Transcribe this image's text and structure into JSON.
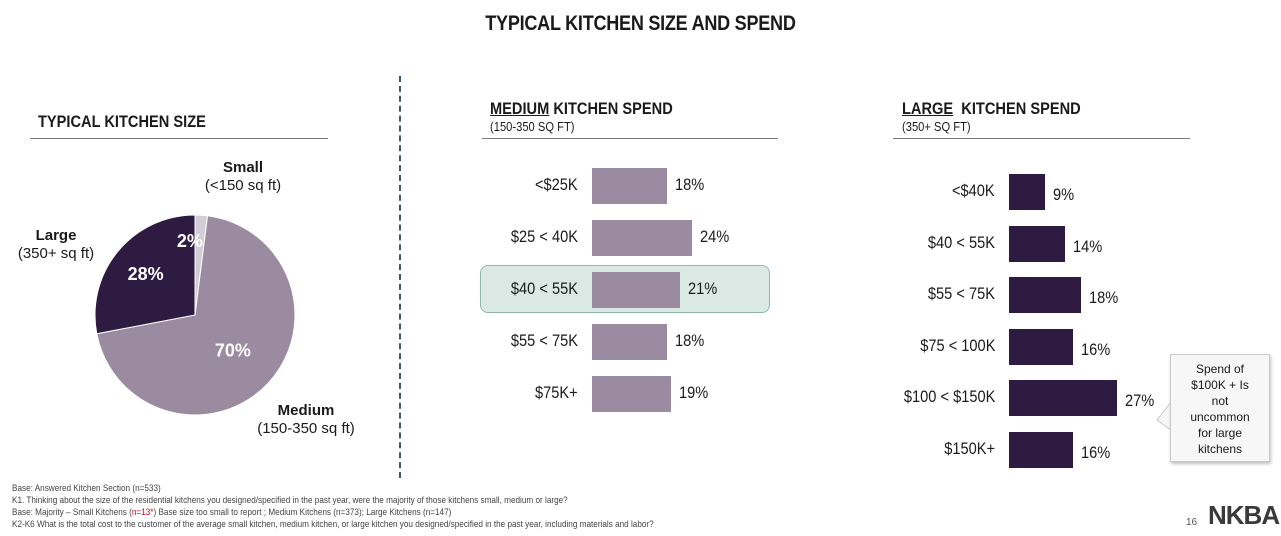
{
  "title": "TYPICAL KITCHEN SIZE AND SPEND",
  "size_section": {
    "title": "TYPICAL KITCHEN SIZE",
    "labels": {
      "small_name": "Small",
      "small_range": "(<150 sq ft)",
      "large_name": "Large",
      "large_range": "(350+ sq ft)",
      "medium_name": "Medium",
      "medium_range": "(150-350 sq ft)"
    }
  },
  "medium_section": {
    "title_underlined": "MEDIUM",
    "title_rest": " KITCHEN SPEND",
    "subtitle": "(150-350 SQ FT)"
  },
  "large_section": {
    "title_underlined": "LARGE",
    "title_rest": "  KITCHEN SPEND",
    "subtitle": "(350+ SQ FT)"
  },
  "callout": {
    "lines": [
      "Spend of",
      "$100K + Is",
      "not",
      "uncommon",
      "for large",
      "kitchens"
    ]
  },
  "footnotes": {
    "line1": "Base:  Answered Kitchen Section (n=533)",
    "line2": "K1.     Thinking about the size of the residential kitchens you designed/specified in the past year, were the majority of those kitchens small, medium or large?",
    "line3a": "Base:  Majority – Small Kitchens (",
    "line3b": "n=13*",
    "line3c": ") Base size too small to report ; Medium Kitchens (n=373); Large Kitchens (n=147)",
    "line4": "K2-K6 What is the total cost to the customer of the average small kitchen, medium kitchen, or large kitchen you designed/specified in the past year, including materials and labor?"
  },
  "page_number": "16",
  "logo": "NKBA",
  "colors": {
    "medium_bar": "#9a8ba0",
    "large_bar": "#2e1b41",
    "pie_medium": "#9a8ba0",
    "pie_large": "#2e1b41",
    "pie_small": "#d2ccd6",
    "highlight_fill": "#dbe9e4",
    "footnote_red": "#d0021b"
  },
  "chart_data": [
    {
      "type": "pie",
      "title": "TYPICAL KITCHEN SIZE",
      "categories": [
        "Small",
        "Medium",
        "Large"
      ],
      "values": [
        2,
        70,
        28
      ],
      "labels": [
        "2%",
        "70%",
        "28%"
      ]
    },
    {
      "type": "bar",
      "orientation": "horizontal",
      "title": "MEDIUM KITCHEN SPEND",
      "subtitle": "(150-350 SQ FT)",
      "categories": [
        "<$25K",
        "$25 < 40K",
        "$40 < 55K",
        "$55 < 75K",
        "$75K+"
      ],
      "values": [
        18,
        24,
        21,
        18,
        19
      ],
      "labels": [
        "18%",
        "24%",
        "21%",
        "18%",
        "19%"
      ],
      "highlighted": "$40 < 55K"
    },
    {
      "type": "bar",
      "orientation": "horizontal",
      "title": "LARGE  KITCHEN SPEND",
      "subtitle": "(350+ SQ FT)",
      "categories": [
        "<$40K",
        "$40 < 55K",
        "$55 < 75K",
        "$75 < 100K",
        "$100 < $150K",
        "$150K+"
      ],
      "values": [
        9,
        14,
        18,
        16,
        27,
        16
      ],
      "labels": [
        "9%",
        "14%",
        "18%",
        "16%",
        "27%",
        "16%"
      ]
    }
  ]
}
